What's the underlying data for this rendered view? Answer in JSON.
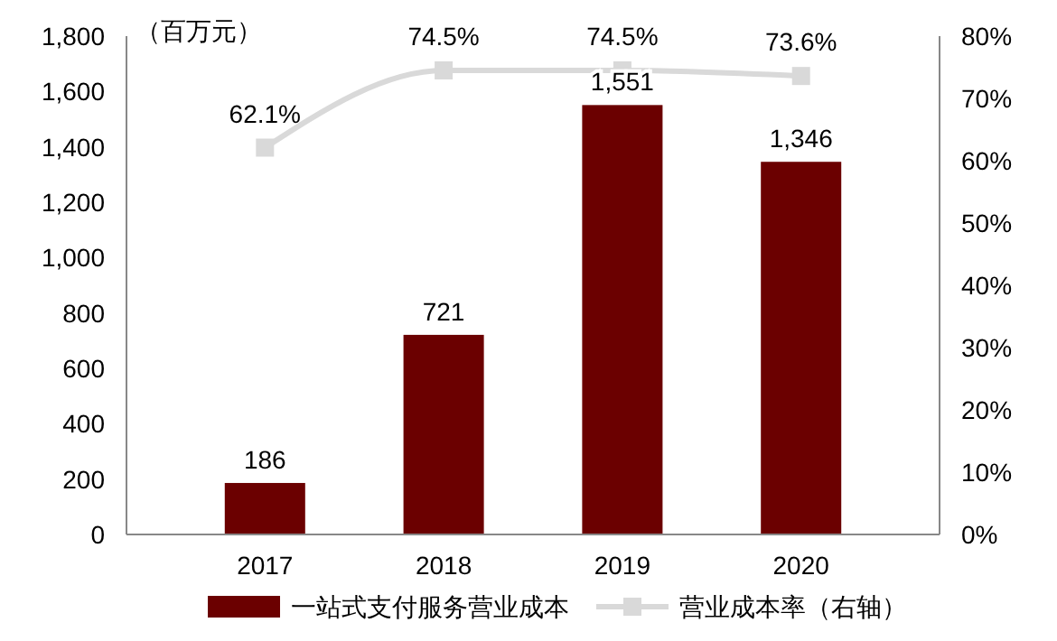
{
  "chart_data": {
    "type": "bar",
    "categories": [
      "2017",
      "2018",
      "2019",
      "2020"
    ],
    "series": [
      {
        "name": "一站式支付服务营业成本",
        "color": "#6b0000",
        "values": [
          186,
          721,
          1551,
          1346
        ],
        "value_labels": [
          "186",
          "721",
          "1,551",
          "1,346"
        ]
      },
      {
        "name": "营业成本率（右轴）",
        "type": "line",
        "axis": "y2",
        "color": "#d9d9d9",
        "marker": "square",
        "values": [
          62.1,
          74.5,
          74.5,
          73.6
        ],
        "value_labels": [
          "62.1%",
          "74.5%",
          "74.5%",
          "73.6%"
        ]
      }
    ],
    "ylim": [
      0,
      1800
    ],
    "yticks": [
      0,
      200,
      400,
      600,
      800,
      {
        "value": 1000,
        "label": "1,000"
      },
      {
        "value": 1200,
        "label": "1,200"
      },
      {
        "value": 1400,
        "label": "1,400"
      },
      {
        "value": 1600,
        "label": "1,600"
      },
      {
        "value": 1800,
        "label": "1,800"
      }
    ],
    "y2lim": [
      0,
      80
    ],
    "y2ticks": [
      {
        "value": 0,
        "label": "0%"
      },
      {
        "value": 10,
        "label": "10%"
      },
      {
        "value": 20,
        "label": "20%"
      },
      {
        "value": 30,
        "label": "30%"
      },
      {
        "value": 40,
        "label": "40%"
      },
      {
        "value": 50,
        "label": "50%"
      },
      {
        "value": 60,
        "label": "60%"
      },
      {
        "value": 70,
        "label": "70%"
      },
      {
        "value": 80,
        "label": "80%"
      }
    ],
    "annotations": [
      "（百万元）"
    ],
    "legend": "bottom",
    "grid": false
  }
}
